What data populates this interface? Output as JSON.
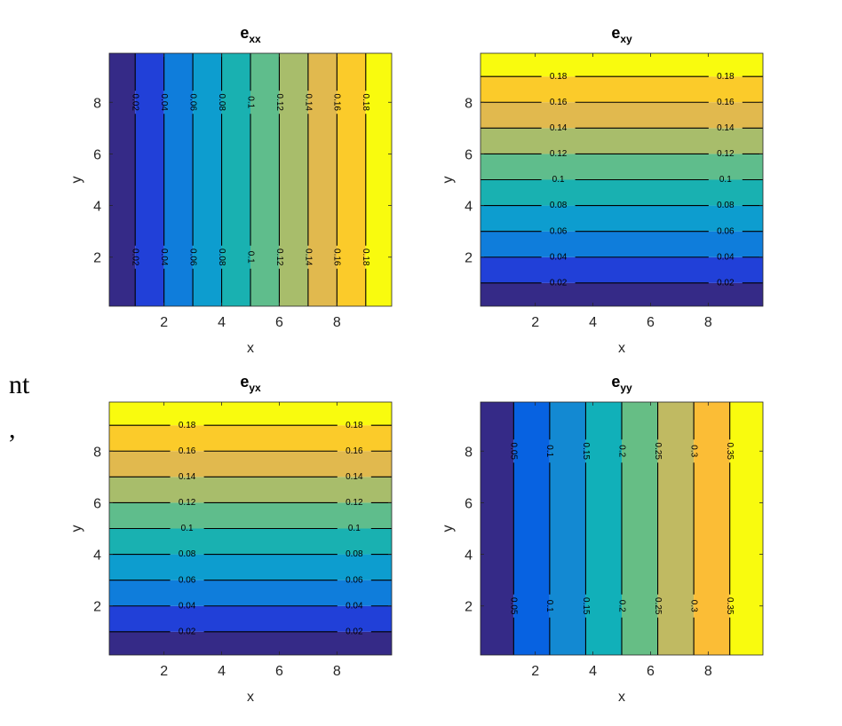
{
  "fragments": {
    "a": "nt",
    "b": ","
  },
  "chart_data": [
    {
      "id": "exx",
      "type": "contour",
      "title_main": "e",
      "title_sub": "xx",
      "xlabel": "x",
      "ylabel": "y",
      "xlim": [
        0.1,
        9.9
      ],
      "ylim": [
        0.1,
        9.9
      ],
      "xticks": [
        2,
        4,
        6,
        8
      ],
      "yticks": [
        2,
        4,
        6,
        8
      ],
      "orientation": "vertical",
      "field_range": [
        0.0,
        0.2
      ],
      "levels": [
        0.02,
        0.04,
        0.06,
        0.08,
        0.1,
        0.12,
        0.14,
        0.16,
        0.18
      ],
      "level_labels": [
        "0.02",
        "0.04",
        "0.06",
        "0.08",
        "0.1",
        "0.12",
        "0.14",
        "0.16",
        "0.18"
      ],
      "band_colors": [
        "#352a87",
        "#2140d8",
        "#0f7ddb",
        "#0d9dcf",
        "#19b1b1",
        "#5fbd8c",
        "#a8bd6b",
        "#e1b94e",
        "#fbcb2a",
        "#f9fb0e"
      ],
      "label_positions": [
        2,
        8
      ]
    },
    {
      "id": "exy",
      "type": "contour",
      "title_main": "e",
      "title_sub": "xy",
      "xlabel": "x",
      "ylabel": "y",
      "xlim": [
        0.1,
        9.9
      ],
      "ylim": [
        0.1,
        9.9
      ],
      "xticks": [
        2,
        4,
        6,
        8
      ],
      "yticks": [
        2,
        4,
        6,
        8
      ],
      "orientation": "horizontal",
      "field_range": [
        0.0,
        0.2
      ],
      "levels": [
        0.02,
        0.04,
        0.06,
        0.08,
        0.1,
        0.12,
        0.14,
        0.16,
        0.18
      ],
      "level_labels": [
        "0.02",
        "0.04",
        "0.06",
        "0.08",
        "0.1",
        "0.12",
        "0.14",
        "0.16",
        "0.18"
      ],
      "band_colors": [
        "#352a87",
        "#2140d8",
        "#0f7ddb",
        "#0d9dcf",
        "#19b1b1",
        "#5fbd8c",
        "#a8bd6b",
        "#e1b94e",
        "#fbcb2a",
        "#f9fb0e"
      ],
      "label_positions": [
        2.8,
        8.6
      ]
    },
    {
      "id": "eyx",
      "type": "contour",
      "title_main": "e",
      "title_sub": "yx",
      "xlabel": "x",
      "ylabel": "y",
      "xlim": [
        0.1,
        9.9
      ],
      "ylim": [
        0.1,
        9.9
      ],
      "xticks": [
        2,
        4,
        6,
        8
      ],
      "yticks": [
        2,
        4,
        6,
        8
      ],
      "orientation": "horizontal",
      "field_range": [
        0.0,
        0.2
      ],
      "levels": [
        0.02,
        0.04,
        0.06,
        0.08,
        0.1,
        0.12,
        0.14,
        0.16,
        0.18
      ],
      "level_labels": [
        "0.02",
        "0.04",
        "0.06",
        "0.08",
        "0.1",
        "0.12",
        "0.14",
        "0.16",
        "0.18"
      ],
      "band_colors": [
        "#352a87",
        "#2140d8",
        "#0f7ddb",
        "#0d9dcf",
        "#19b1b1",
        "#5fbd8c",
        "#a8bd6b",
        "#e1b94e",
        "#fbcb2a",
        "#f9fb0e"
      ],
      "label_positions": [
        2.8,
        8.6
      ]
    },
    {
      "id": "eyy",
      "type": "contour",
      "title_main": "e",
      "title_sub": "yy",
      "xlabel": "x",
      "ylabel": "y",
      "xlim": [
        0.1,
        9.9
      ],
      "ylim": [
        0.1,
        9.9
      ],
      "xticks": [
        2,
        4,
        6,
        8
      ],
      "yticks": [
        2,
        4,
        6,
        8
      ],
      "orientation": "vertical",
      "field_range": [
        0.0,
        0.4
      ],
      "levels": [
        0.05,
        0.1,
        0.15,
        0.2,
        0.25,
        0.3,
        0.35
      ],
      "level_labels": [
        "0.05",
        "0.1",
        "0.15",
        "0.2",
        "0.25",
        "0.3",
        "0.35"
      ],
      "band_colors": [
        "#352a87",
        "#0762e1",
        "#1389d2",
        "#11b0b9",
        "#66be85",
        "#c0ba62",
        "#fbbd36",
        "#f9fb0e"
      ],
      "label_positions": [
        2,
        8
      ]
    }
  ]
}
